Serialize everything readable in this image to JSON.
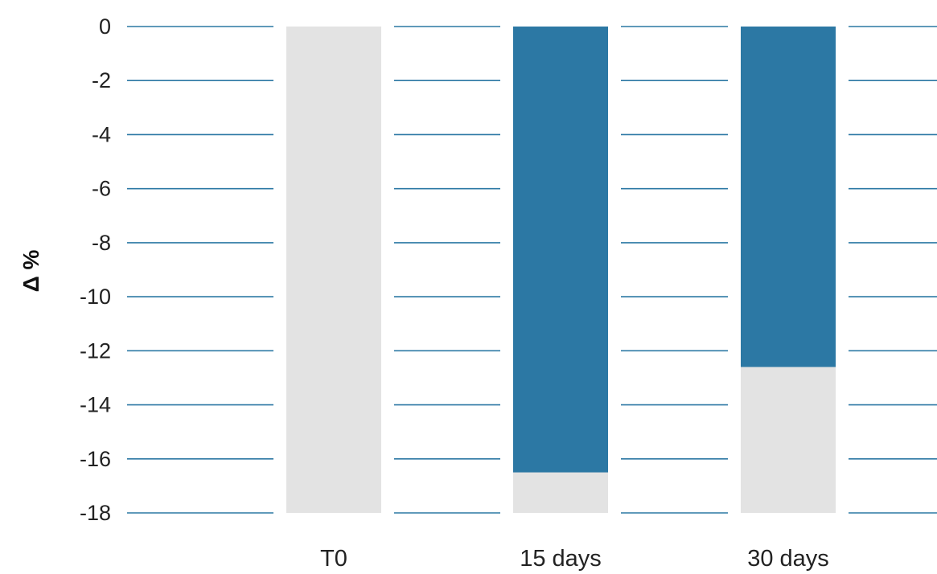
{
  "chart_data": {
    "type": "bar",
    "title": "",
    "xlabel": "",
    "ylabel": "Δ %",
    "ylim": [
      -18,
      0
    ],
    "yticks": [
      0,
      -2,
      -4,
      -6,
      -8,
      -10,
      -12,
      -14,
      -16,
      -18
    ],
    "ytick_labels": [
      "0",
      "-2",
      "-4",
      "-6",
      "-8",
      "-10",
      "-12",
      "-14",
      "-16",
      "-18"
    ],
    "categories": [
      "T0",
      "15 days",
      "30 days"
    ],
    "values": [
      0,
      -16.5,
      -12.6
    ],
    "grid": true,
    "legend": "none",
    "colors": {
      "bar": "#2c78a4",
      "background_bar": "#e3e3e3",
      "grid": "#2c78a4"
    }
  }
}
